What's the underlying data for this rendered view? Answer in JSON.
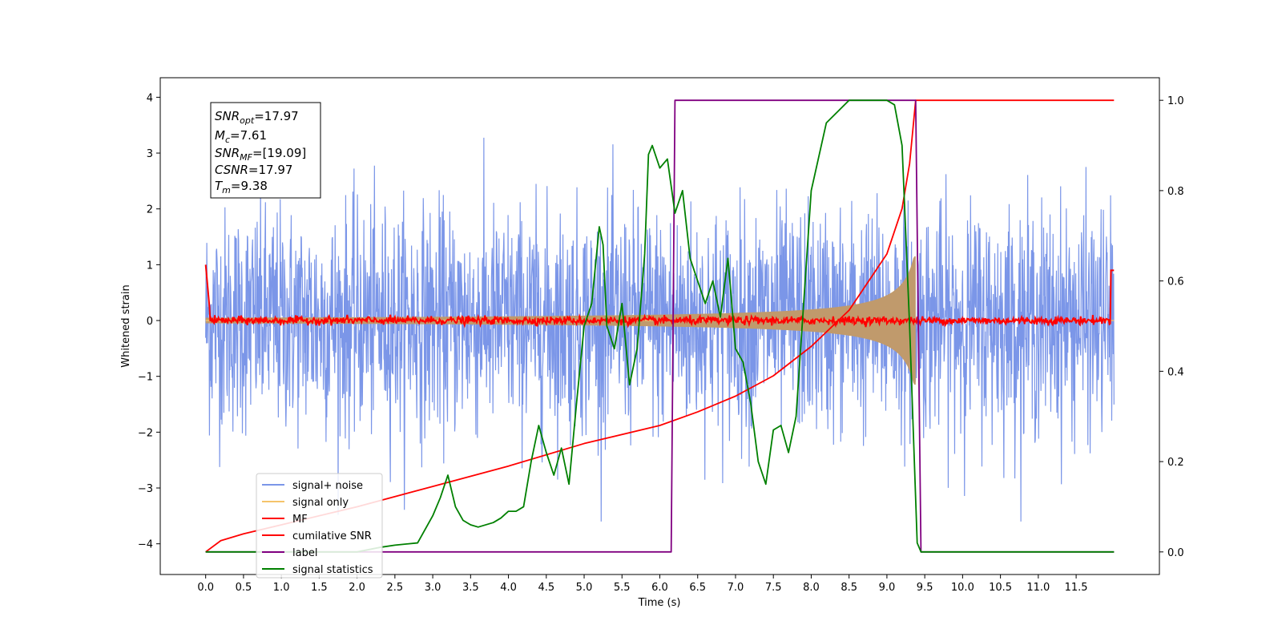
{
  "chart_data": {
    "type": "line",
    "xlabel": "Time (s)",
    "ylabel": "Whitened strain",
    "xlim": [
      -0.6,
      12.6
    ],
    "ylim": [
      -4.55,
      4.35
    ],
    "y2lim": [
      -0.05,
      1.05
    ],
    "x_ticks": [
      "0.0",
      "0.5",
      "1.0",
      "1.5",
      "2.0",
      "2.5",
      "3.0",
      "3.5",
      "4.0",
      "4.5",
      "5.0",
      "5.5",
      "6.0",
      "6.5",
      "7.0",
      "7.5",
      "8.0",
      "8.5",
      "9.0",
      "9.5",
      "10.0",
      "10.5",
      "11.0",
      "11.5"
    ],
    "y_ticks": [
      "4",
      "3",
      "2",
      "1",
      "0",
      "−1",
      "−2",
      "−3",
      "−4"
    ],
    "y2_ticks": [
      "1.0",
      "0.8",
      "0.6",
      "0.4",
      "0.2",
      "0.0"
    ],
    "annotation": {
      "snr_opt": {
        "label": "SNR",
        "sub": "opt",
        "value": "=17.97"
      },
      "mc": {
        "label": "M",
        "sub": "c",
        "value": "=7.61"
      },
      "snr_mf": {
        "label": "SNR",
        "sub": "MF",
        "value": "=[19.09]"
      },
      "csnr": {
        "label": "CSNR",
        "value": "=17.97"
      },
      "tm": {
        "label": "T",
        "sub": "m",
        "value": "=9.38"
      }
    },
    "legend_position": "lower-left",
    "grid": false,
    "series": [
      {
        "name": "signal+ noise",
        "axis": "left",
        "color": "#7b96e8",
        "description_values": "gaussian noise, std ~1, range about -3.6 to 3.3 over t=0 to 12"
      },
      {
        "name": "signal only",
        "axis": "left",
        "color": "#f5c46a",
        "chirp": {
          "t0": 0.0,
          "t_merge": 9.38,
          "amp_start": 0.05,
          "amp_peak": 1.15
        }
      },
      {
        "name": "MF",
        "axis": "left",
        "color": "#ff0000",
        "values_note": "noise about 0 with std ~0.04; value 1.0 at t=0 and 0.9 at t=12"
      },
      {
        "name": "cumilative SNR",
        "axis": "right",
        "color": "#ff0000",
        "x": [
          0.0,
          0.2,
          0.5,
          1.0,
          2.0,
          3.0,
          4.0,
          5.0,
          6.0,
          6.5,
          7.0,
          7.5,
          8.0,
          8.5,
          9.0,
          9.2,
          9.3,
          9.38,
          12.0
        ],
        "y": [
          0.0,
          0.025,
          0.04,
          0.06,
          0.1,
          0.145,
          0.19,
          0.24,
          0.28,
          0.31,
          0.345,
          0.39,
          0.455,
          0.535,
          0.66,
          0.76,
          0.86,
          1.0,
          1.0
        ]
      },
      {
        "name": "label",
        "axis": "right",
        "color": "#800080",
        "x": [
          0.0,
          6.15,
          6.2,
          9.38,
          9.45,
          12.0
        ],
        "y": [
          0.0,
          0.0,
          1.0,
          1.0,
          0.0,
          0.0
        ]
      },
      {
        "name": "signal statistics",
        "axis": "right",
        "color": "#008000",
        "x": [
          0.0,
          0.5,
          1.0,
          1.5,
          2.0,
          2.3,
          2.5,
          2.8,
          3.0,
          3.1,
          3.2,
          3.3,
          3.4,
          3.5,
          3.6,
          3.8,
          3.9,
          4.0,
          4.1,
          4.2,
          4.3,
          4.4,
          4.5,
          4.6,
          4.7,
          4.8,
          4.9,
          5.0,
          5.1,
          5.2,
          5.25,
          5.3,
          5.4,
          5.5,
          5.6,
          5.7,
          5.8,
          5.85,
          5.9,
          6.0,
          6.1,
          6.2,
          6.3,
          6.4,
          6.5,
          6.6,
          6.7,
          6.8,
          6.9,
          7.0,
          7.1,
          7.2,
          7.3,
          7.4,
          7.5,
          7.6,
          7.7,
          7.8,
          7.9,
          8.0,
          8.2,
          8.5,
          9.0,
          9.1,
          9.2,
          9.3,
          9.4,
          9.45,
          12.0
        ],
        "y": [
          0.0,
          0.0,
          0.0,
          0.0,
          0.0,
          0.01,
          0.015,
          0.02,
          0.08,
          0.12,
          0.17,
          0.1,
          0.07,
          0.06,
          0.055,
          0.065,
          0.075,
          0.09,
          0.09,
          0.1,
          0.2,
          0.28,
          0.22,
          0.17,
          0.23,
          0.15,
          0.33,
          0.5,
          0.55,
          0.72,
          0.68,
          0.5,
          0.45,
          0.55,
          0.37,
          0.45,
          0.66,
          0.88,
          0.9,
          0.85,
          0.87,
          0.75,
          0.8,
          0.65,
          0.6,
          0.55,
          0.6,
          0.52,
          0.65,
          0.45,
          0.42,
          0.33,
          0.2,
          0.15,
          0.27,
          0.28,
          0.22,
          0.3,
          0.55,
          0.8,
          0.95,
          1.0,
          1.0,
          0.99,
          0.9,
          0.5,
          0.02,
          0.0,
          0.0
        ]
      }
    ]
  }
}
